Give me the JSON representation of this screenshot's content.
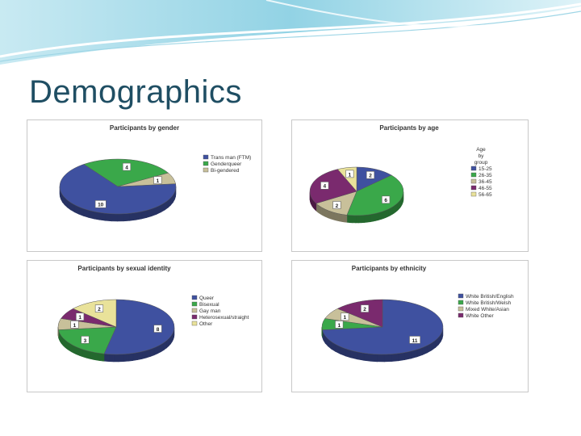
{
  "slide": {
    "title": "Demographics"
  },
  "chart_data": [
    {
      "type": "pie",
      "title": "Participants by gender",
      "legend_title": "",
      "categories": [
        "Trans man (FTM)",
        "Genderqueer",
        "Bi-gendered"
      ],
      "values": [
        10,
        4,
        1
      ],
      "colors": [
        "#3f51a0",
        "#3aa84a",
        "#c8c09a"
      ],
      "legend_position": "right"
    },
    {
      "type": "pie",
      "title": "Participants by age",
      "legend_title": "Age by group",
      "categories": [
        "15-25",
        "26-35",
        "36-45",
        "46-55",
        "56-65"
      ],
      "values": [
        2,
        6,
        2,
        4,
        1
      ],
      "colors": [
        "#3f51a0",
        "#3aa84a",
        "#c8c09a",
        "#7a2a6e",
        "#e9e29a"
      ],
      "legend_position": "right"
    },
    {
      "type": "pie",
      "title": "Participants by sexual identity",
      "legend_title": "",
      "categories": [
        "Queer",
        "Bisexual",
        "Gay man",
        "Heterosexual/straight",
        "Other"
      ],
      "values": [
        8,
        3,
        1,
        1,
        2
      ],
      "colors": [
        "#3f51a0",
        "#3aa84a",
        "#c8c09a",
        "#7a2a6e",
        "#e9e29a"
      ],
      "legend_position": "right"
    },
    {
      "type": "pie",
      "title": "Participants by ethnicity",
      "legend_title": "",
      "categories": [
        "White British/English",
        "White British/Welsh",
        "Mixed White/Asian",
        "White Other"
      ],
      "values": [
        11,
        1,
        1,
        2
      ],
      "colors": [
        "#3f51a0",
        "#3aa84a",
        "#c8c09a",
        "#7a2a6e"
      ],
      "legend_position": "right"
    }
  ]
}
